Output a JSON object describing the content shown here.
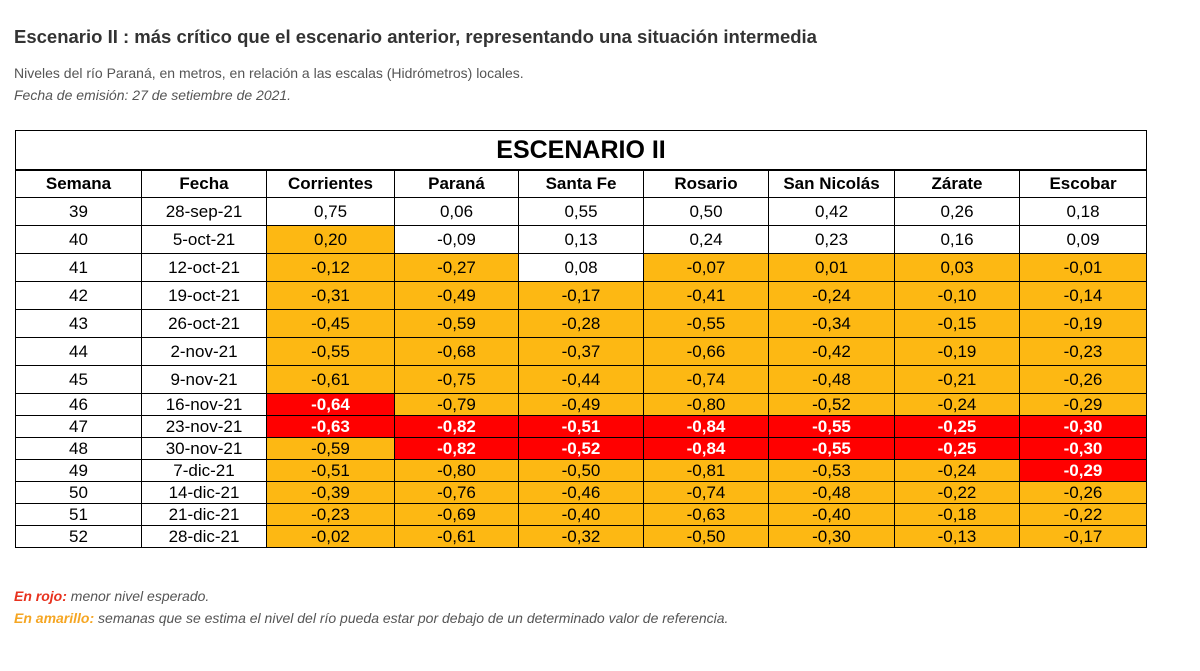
{
  "title": "Escenario II : más crítico que el escenario anterior, representando una situación intermedia",
  "subtitle": "Niveles del río Paraná, en metros, en relación a las escalas (Hidrómetros) locales.",
  "date": "Fecha de emisión: 27 de setiembre de 2021.",
  "table": {
    "banner": "ESCENARIO II",
    "headers": [
      "Semana",
      "Fecha",
      "Corrientes",
      "Paraná",
      "Santa Fe",
      "Rosario",
      "San Nicolás",
      "Zárate",
      "Escobar"
    ],
    "rows": [
      {
        "cells": [
          "39",
          "28-sep-21",
          "0,75",
          "0,06",
          "0,55",
          "0,50",
          "0,42",
          "0,26",
          "0,18"
        ],
        "status": [
          "w",
          "w",
          "w",
          "w",
          "w",
          "w",
          "w",
          "w",
          "w"
        ]
      },
      {
        "cells": [
          "40",
          "5-oct-21",
          "0,20",
          "-0,09",
          "0,13",
          "0,24",
          "0,23",
          "0,16",
          "0,09"
        ],
        "status": [
          "w",
          "w",
          "y",
          "w",
          "w",
          "w",
          "w",
          "w",
          "w"
        ]
      },
      {
        "cells": [
          "41",
          "12-oct-21",
          "-0,12",
          "-0,27",
          "0,08",
          "-0,07",
          "0,01",
          "0,03",
          "-0,01"
        ],
        "status": [
          "w",
          "w",
          "y",
          "y",
          "w",
          "y",
          "y",
          "y",
          "y"
        ]
      },
      {
        "cells": [
          "42",
          "19-oct-21",
          "-0,31",
          "-0,49",
          "-0,17",
          "-0,41",
          "-0,24",
          "-0,10",
          "-0,14"
        ],
        "status": [
          "w",
          "w",
          "y",
          "y",
          "y",
          "y",
          "y",
          "y",
          "y"
        ]
      },
      {
        "cells": [
          "43",
          "26-oct-21",
          "-0,45",
          "-0,59",
          "-0,28",
          "-0,55",
          "-0,34",
          "-0,15",
          "-0,19"
        ],
        "status": [
          "w",
          "w",
          "y",
          "y",
          "y",
          "y",
          "y",
          "y",
          "y"
        ]
      },
      {
        "cells": [
          "44",
          "2-nov-21",
          "-0,55",
          "-0,68",
          "-0,37",
          "-0,66",
          "-0,42",
          "-0,19",
          "-0,23"
        ],
        "status": [
          "w",
          "w",
          "y",
          "y",
          "y",
          "y",
          "y",
          "y",
          "y"
        ]
      },
      {
        "cells": [
          "45",
          "9-nov-21",
          "-0,61",
          "-0,75",
          "-0,44",
          "-0,74",
          "-0,48",
          "-0,21",
          "-0,26"
        ],
        "status": [
          "w",
          "w",
          "y",
          "y",
          "y",
          "y",
          "y",
          "y",
          "y"
        ]
      },
      {
        "cells": [
          "46",
          "16-nov-21",
          "-0,64",
          "-0,79",
          "-0,49",
          "-0,80",
          "-0,52",
          "-0,24",
          "-0,29"
        ],
        "status": [
          "w",
          "w",
          "r",
          "y",
          "y",
          "y",
          "y",
          "y",
          "y"
        ]
      },
      {
        "cells": [
          "47",
          "23-nov-21",
          "-0,63",
          "-0,82",
          "-0,51",
          "-0,84",
          "-0,55",
          "-0,25",
          "-0,30"
        ],
        "status": [
          "w",
          "w",
          "r",
          "r",
          "r",
          "r",
          "r",
          "r",
          "r"
        ]
      },
      {
        "cells": [
          "48",
          "30-nov-21",
          "-0,59",
          "-0,82",
          "-0,52",
          "-0,84",
          "-0,55",
          "-0,25",
          "-0,30"
        ],
        "status": [
          "w",
          "w",
          "y",
          "r",
          "r",
          "r",
          "r",
          "r",
          "r"
        ]
      },
      {
        "cells": [
          "49",
          "7-dic-21",
          "-0,51",
          "-0,80",
          "-0,50",
          "-0,81",
          "-0,53",
          "-0,24",
          "-0,29"
        ],
        "status": [
          "w",
          "w",
          "y",
          "y",
          "y",
          "y",
          "y",
          "y",
          "r"
        ]
      },
      {
        "cells": [
          "50",
          "14-dic-21",
          "-0,39",
          "-0,76",
          "-0,46",
          "-0,74",
          "-0,48",
          "-0,22",
          "-0,26"
        ],
        "status": [
          "w",
          "w",
          "y",
          "y",
          "y",
          "y",
          "y",
          "y",
          "y"
        ]
      },
      {
        "cells": [
          "51",
          "21-dic-21",
          "-0,23",
          "-0,69",
          "-0,40",
          "-0,63",
          "-0,40",
          "-0,18",
          "-0,22"
        ],
        "status": [
          "w",
          "w",
          "y",
          "y",
          "y",
          "y",
          "y",
          "y",
          "y"
        ]
      },
      {
        "cells": [
          "52",
          "28-dic-21",
          "-0,02",
          "-0,61",
          "-0,32",
          "-0,50",
          "-0,30",
          "-0,13",
          "-0,17"
        ],
        "status": [
          "w",
          "w",
          "y",
          "y",
          "y",
          "y",
          "y",
          "y",
          "y"
        ]
      }
    ]
  },
  "legend": {
    "red_label": "En rojo:",
    "red_text": " menor nivel esperado.",
    "yellow_label": "En amarillo:",
    "yellow_text": " semanas que se estima el nivel del río pueda estar por debajo de un determinado valor de referencia."
  },
  "colors": {
    "yellow": "#fdb813",
    "red": "#ff0000",
    "legend_red": "#e8321e",
    "legend_yellow": "#f5a623"
  }
}
